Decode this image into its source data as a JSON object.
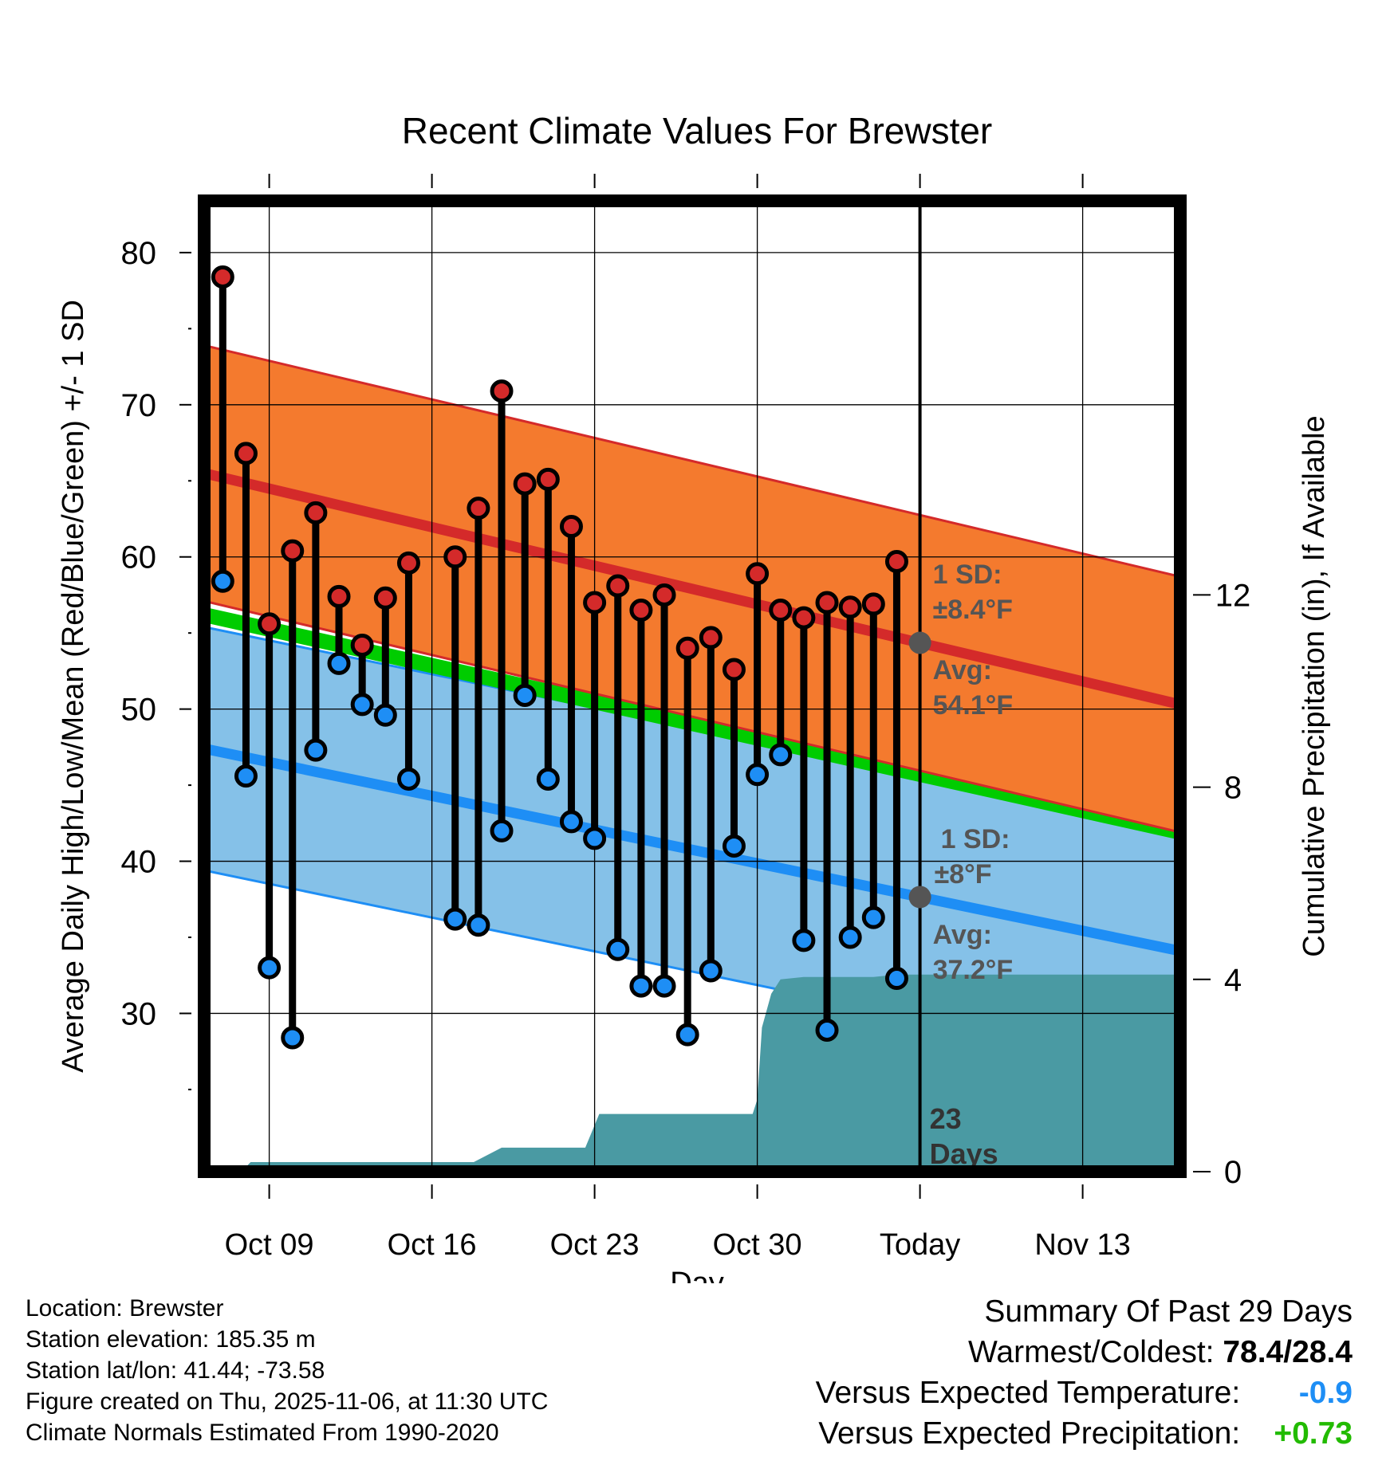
{
  "chart_data": {
    "type": "line",
    "title": "Recent Climate Values For Brewster",
    "xlabel": "Day",
    "ylabel": "Average Daily High/Low/Mean (Red/Blue/Green) +/- 1 SD",
    "y2label": "Cumulative Precipitation (in), If Available",
    "xlim": [
      -0.8,
      41.2
    ],
    "ylim": [
      19.6,
      83.4
    ],
    "y2lim": [
      0,
      20.2
    ],
    "yticks": [
      30,
      40,
      50,
      60,
      70,
      80
    ],
    "y2ticks": [
      0,
      4,
      8,
      12
    ],
    "x_ticks": [
      {
        "x": 2,
        "label": "Oct 09"
      },
      {
        "x": 9,
        "label": "Oct 16"
      },
      {
        "x": 16,
        "label": "Oct 23"
      },
      {
        "x": 23,
        "label": "Oct 30"
      },
      {
        "x": 30,
        "label": "Today"
      },
      {
        "x": 37,
        "label": "Nov 13"
      }
    ],
    "today_x": 30,
    "days": [
      0,
      1,
      2,
      3,
      4,
      5,
      6,
      7,
      8,
      9,
      10,
      11,
      12,
      13,
      14,
      15,
      16,
      17,
      18,
      19,
      20,
      21,
      22,
      23,
      24,
      25,
      26,
      27,
      28,
      29
    ],
    "highs": [
      78.4,
      66.8,
      55.6,
      60.4,
      62.9,
      57.4,
      54.2,
      57.3,
      59.6,
      null,
      60.0,
      63.2,
      70.9,
      64.8,
      65.1,
      62.0,
      57.0,
      58.1,
      56.5,
      57.5,
      54.0,
      54.7,
      52.6,
      58.9,
      56.5,
      56.0,
      57.0,
      56.7,
      56.9,
      59.7
    ],
    "lows": [
      58.4,
      45.6,
      33.0,
      28.4,
      47.3,
      53.0,
      50.3,
      49.6,
      45.4,
      null,
      36.2,
      35.8,
      42.0,
      50.9,
      45.4,
      42.6,
      41.5,
      34.2,
      31.8,
      31.8,
      28.6,
      32.8,
      41.0,
      45.7,
      47.0,
      34.8,
      28.9,
      35.0,
      36.3,
      32.3
    ],
    "normals": {
      "x_start": -0.8,
      "x_end": 41.2,
      "high_mean": [
        65.5,
        50.3
      ],
      "high_sd": 8.4,
      "low_mean": [
        47.4,
        34.1
      ],
      "low_sd": 8.0,
      "mean_normal": [
        56.2,
        41.9
      ]
    },
    "precipitation": {
      "x": [
        -0.8,
        0.8,
        1.2,
        10.8,
        12.0,
        12.8,
        13.2,
        15.6,
        16.2,
        22.8,
        23.0,
        23.2,
        23.6,
        24.0,
        25.0,
        28.0,
        29.0,
        41.2
      ],
      "values": [
        0,
        0,
        0.2,
        0.2,
        0.5,
        0.5,
        0.5,
        0.5,
        1.2,
        1.2,
        1.5,
        3.0,
        3.7,
        4.0,
        4.05,
        4.05,
        4.1,
        4.1
      ]
    },
    "annotations": {
      "high_sd_line1": "1 SD:",
      "high_sd_line2": "±8.4°F",
      "high_avg_line1": "Avg:",
      "high_avg_line2": "54.1°F",
      "low_sd_line1": "1 SD:",
      "low_sd_line2": "±8°F",
      "low_avg_line1": "Avg:",
      "low_avg_line2": "37.2°F",
      "days_line1": "23",
      "days_line2": "Days"
    },
    "colors": {
      "high_band": "#f47a2e",
      "high_line": "#d42a2a",
      "low_band": "#85c1e8",
      "low_line": "#1e8ef5",
      "normal_line": "#00cc00",
      "precip": "#4a9aa3",
      "high_dot": "#d42a2a",
      "low_dot": "#1e8ef5",
      "avg_dot": "#555555",
      "annotation": "#555555"
    }
  },
  "info": {
    "location": "Location: Brewster",
    "elevation": "Station elevation: 185.35 m",
    "latlon": "Station lat/lon: 41.44; -73.58",
    "created": "Figure created on Thu, 2025-11-06, at 11:30 UTC",
    "normals": "Climate Normals Estimated From 1990-2020"
  },
  "summary": {
    "title": "Summary Of Past 29 Days",
    "warmest_label": "Warmest/Coldest:",
    "warmest_value": "78.4/28.4",
    "temp_label": "Versus Expected Temperature:",
    "temp_value": "-0.9",
    "temp_color": "#1e8ef5",
    "precip_label": "Versus Expected Precipitation:",
    "precip_value": "+0.73",
    "precip_color": "#22bb00"
  }
}
